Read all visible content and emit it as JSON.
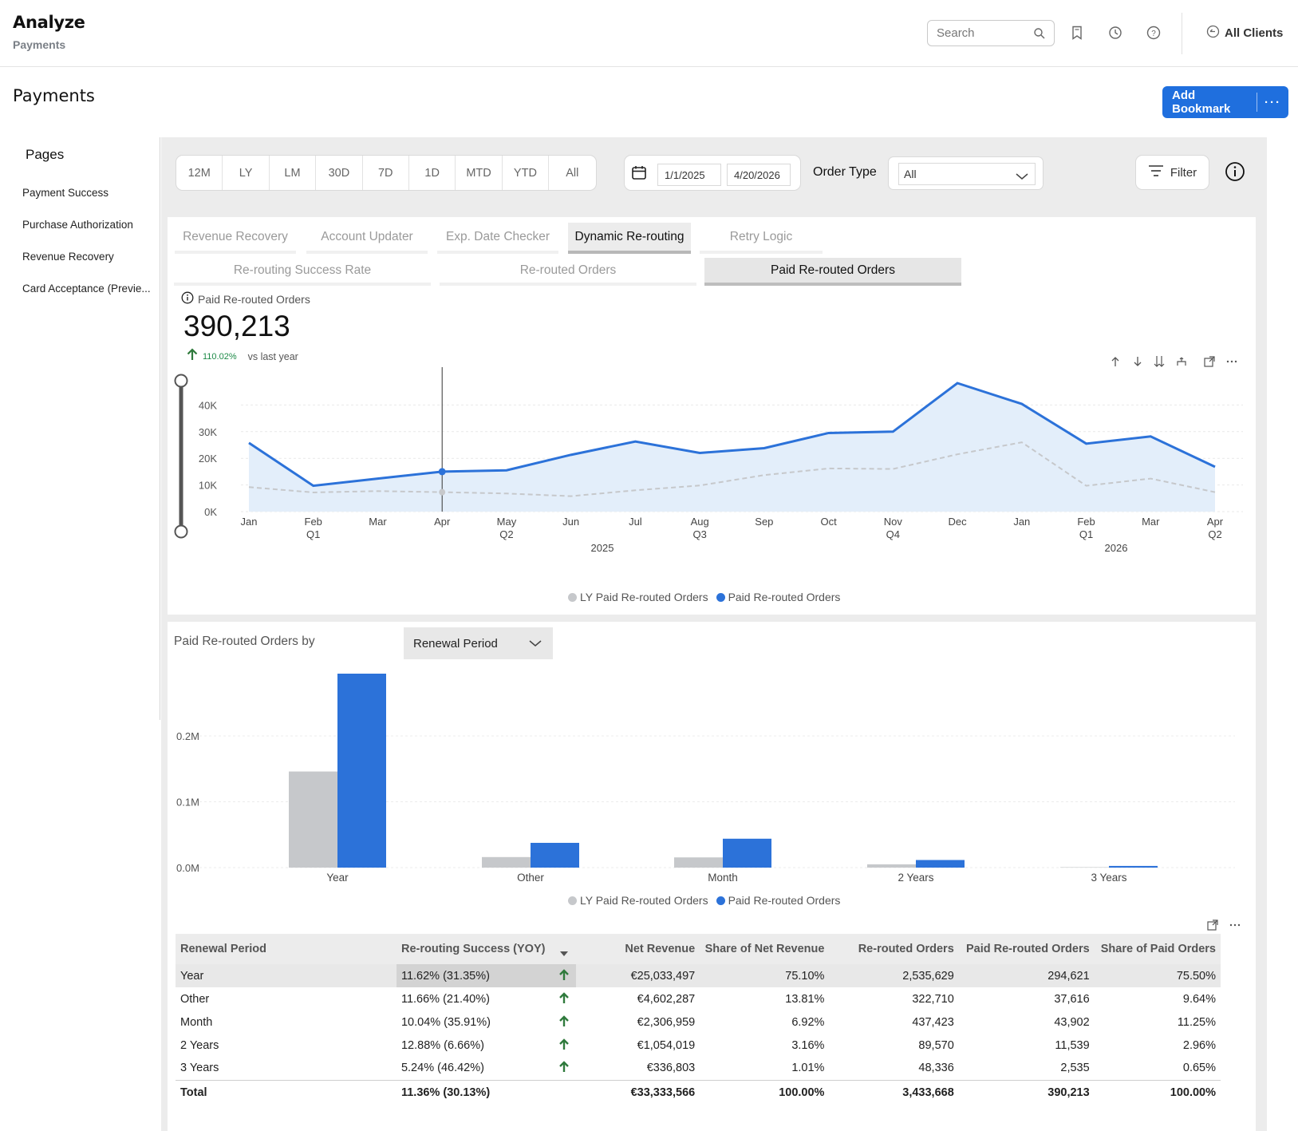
{
  "header": {
    "app_title": "Analyze",
    "app_subtitle": "Payments",
    "search_placeholder": "Search",
    "clients_label": "All Clients"
  },
  "page": {
    "title": "Payments",
    "add_bookmark_label": "Add Bookmark",
    "more_label": "···"
  },
  "sidebar": {
    "title": "Pages",
    "items": [
      "Payment Success",
      "Purchase Authorization",
      "Revenue Recovery",
      "Card Acceptance (Previe..."
    ]
  },
  "filters": {
    "ranges": [
      "12M",
      "LY",
      "LM",
      "30D",
      "7D",
      "1D",
      "MTD",
      "YTD",
      "All"
    ],
    "start_date": "1/1/2025",
    "end_date": "4/20/2026",
    "order_type_label": "Order Type",
    "order_type_value": "All",
    "filter_label": "Filter"
  },
  "tabs": [
    "Revenue Recovery",
    "Account Updater",
    "Exp. Date Checker",
    "Dynamic Re-routing",
    "Retry Logic"
  ],
  "active_tab": "Dynamic Re-routing",
  "subtabs": [
    "Re-routing Success Rate",
    "Re-routed Orders",
    "Paid Re-routed Orders"
  ],
  "active_subtab": "Paid Re-routed Orders",
  "kpi": {
    "label": "Paid Re-routed Orders",
    "value": "390,213",
    "delta_pct": "110.02%",
    "delta_caption": "vs last year"
  },
  "colors": {
    "primary": "#2c72d9",
    "ly": "#c6c8cb",
    "positive": "#1d8a47",
    "area": "#e3eefa"
  },
  "chart_data": [
    {
      "type": "line",
      "x": [
        "Jan",
        "Feb",
        "Mar",
        "Apr",
        "May",
        "Jun",
        "Jul",
        "Aug",
        "Sep",
        "Oct",
        "Nov",
        "Dec",
        "Jan",
        "Feb",
        "Mar",
        "Apr"
      ],
      "x_sub": [
        "",
        "Q1",
        "",
        "",
        "Q2",
        "",
        "",
        "Q3",
        "",
        "",
        "Q4",
        "",
        "",
        "Q1",
        "",
        "Q2"
      ],
      "year_labels": [
        "2025",
        "2026"
      ],
      "series": [
        {
          "name": "LY Paid Re-routed Orders",
          "values": [
            9200,
            7200,
            7700,
            7300,
            6800,
            5800,
            8000,
            9800,
            13700,
            16200,
            16000,
            21500,
            26000,
            9700,
            12400,
            7300
          ]
        },
        {
          "name": "Paid Re-routed Orders",
          "values": [
            25800,
            9700,
            12400,
            15000,
            15500,
            21300,
            26300,
            22000,
            23800,
            29500,
            30000,
            48200,
            40400,
            25500,
            28200,
            16800
          ]
        }
      ],
      "y_ticks": [
        "0K",
        "10K",
        "20K",
        "30K",
        "40K"
      ],
      "ylim": [
        0,
        48200
      ],
      "grid": true,
      "legend": "bottom-center"
    },
    {
      "type": "bar",
      "title": "Paid Re-routed Orders by",
      "categories": [
        "Year",
        "Other",
        "Month",
        "2 Years",
        "3 Years"
      ],
      "series": [
        {
          "name": "LY Paid Re-routed Orders",
          "values": [
            146000,
            16000,
            15500,
            5000,
            700
          ]
        },
        {
          "name": "Paid Re-routed Orders",
          "values": [
            294621,
            37616,
            43902,
            11539,
            2535
          ]
        }
      ],
      "y_ticks": [
        "0.0M",
        "0.1M",
        "0.2M"
      ],
      "ylim": [
        0,
        294621
      ],
      "grid": true,
      "legend": "bottom-center"
    }
  ],
  "breakdown": {
    "select_value": "Renewal Period"
  },
  "table": {
    "columns": [
      "Renewal Period",
      "Re-routing Success (YOY)",
      "",
      "Net Revenue",
      "Share of Net Revenue",
      "Re-routed Orders",
      "Paid Re-routed Orders",
      "Share of Paid Orders"
    ],
    "rows": [
      [
        "Year",
        "11.62% (31.35%)",
        "€25,033,497",
        "75.10%",
        "2,535,629",
        "294,621",
        "75.50%"
      ],
      [
        "Other",
        "11.66% (21.40%)",
        "€4,602,287",
        "13.81%",
        "322,710",
        "37,616",
        "9.64%"
      ],
      [
        "Month",
        "10.04% (35.91%)",
        "€2,306,959",
        "6.92%",
        "437,423",
        "43,902",
        "11.25%"
      ],
      [
        "2 Years",
        "12.88% (6.66%)",
        "€1,054,019",
        "3.16%",
        "89,570",
        "11,539",
        "2.96%"
      ],
      [
        "3 Years",
        "5.24% (46.42%)",
        "€336,803",
        "1.01%",
        "48,336",
        "2,535",
        "0.65%"
      ]
    ],
    "total": [
      "Total",
      "11.36% (30.13%)",
      "€33,333,566",
      "100.00%",
      "3,433,668",
      "390,213",
      "100.00%"
    ]
  }
}
